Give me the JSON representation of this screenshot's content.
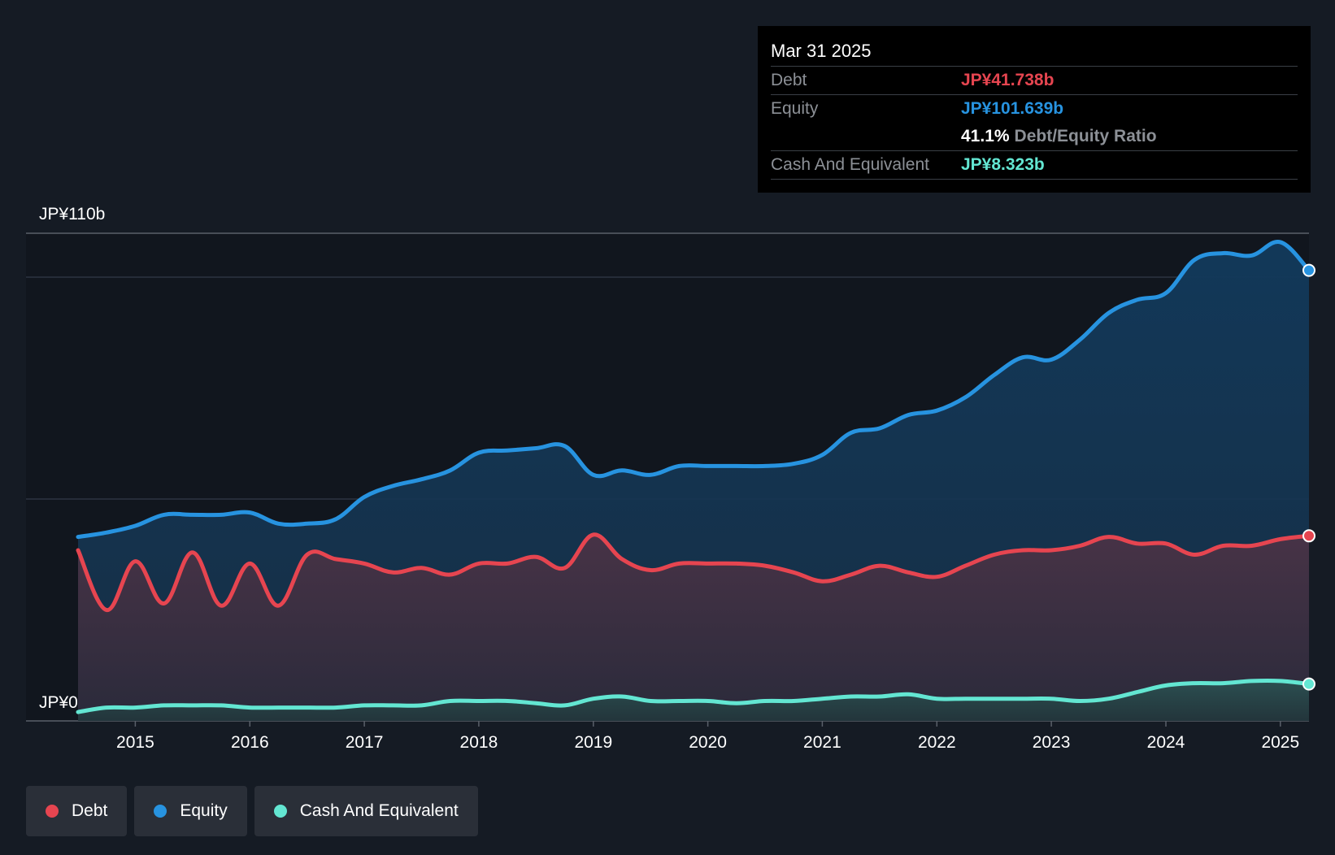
{
  "colors": {
    "debt": "#e64550",
    "equity": "#2793e0",
    "cash": "#63e6d2",
    "background": "#151b24"
  },
  "tooltip": {
    "date": "Mar 31 2025",
    "debt_label": "Debt",
    "debt_value": "JP¥41.738b",
    "equity_label": "Equity",
    "equity_value": "JP¥101.639b",
    "ratio_value": "41.1%",
    "ratio_label": "Debt/Equity Ratio",
    "cash_label": "Cash And Equivalent",
    "cash_value": "JP¥8.323b"
  },
  "legend": [
    {
      "label": "Debt",
      "color": "#e64550"
    },
    {
      "label": "Equity",
      "color": "#2793e0"
    },
    {
      "label": "Cash And Equivalent",
      "color": "#63e6d2"
    }
  ],
  "chart_data": {
    "type": "area",
    "title": "",
    "xlabel": "",
    "ylabel": "",
    "ylim": [
      0,
      110
    ],
    "y_tick_labels": [
      "JP¥0",
      "JP¥110b"
    ],
    "x_tick_labels": [
      "2015",
      "2016",
      "2017",
      "2018",
      "2019",
      "2020",
      "2021",
      "2022",
      "2023",
      "2024",
      "2025"
    ],
    "x_ticks": [
      2015,
      2016,
      2017,
      2018,
      2019,
      2020,
      2021,
      2022,
      2023,
      2024,
      2025
    ],
    "xlim": [
      2014.5,
      2025.25
    ],
    "series": [
      {
        "name": "Equity",
        "color": "#2793e0",
        "points": [
          [
            2014.5,
            41.5
          ],
          [
            2014.75,
            42.5
          ],
          [
            2015.0,
            44.0
          ],
          [
            2015.25,
            46.5
          ],
          [
            2015.5,
            46.5
          ],
          [
            2015.75,
            46.5
          ],
          [
            2016.0,
            47.0
          ],
          [
            2016.25,
            44.5
          ],
          [
            2016.5,
            44.5
          ],
          [
            2016.75,
            45.5
          ],
          [
            2017.0,
            50.5
          ],
          [
            2017.25,
            53.0
          ],
          [
            2017.5,
            54.5
          ],
          [
            2017.75,
            56.5
          ],
          [
            2018.0,
            60.5
          ],
          [
            2018.25,
            61.0
          ],
          [
            2018.5,
            61.5
          ],
          [
            2018.75,
            62.0
          ],
          [
            2019.0,
            55.5
          ],
          [
            2019.25,
            56.5
          ],
          [
            2019.5,
            55.5
          ],
          [
            2019.75,
            57.5
          ],
          [
            2020.0,
            57.5
          ],
          [
            2020.25,
            57.5
          ],
          [
            2020.5,
            57.5
          ],
          [
            2020.75,
            58.0
          ],
          [
            2021.0,
            60.0
          ],
          [
            2021.25,
            65.0
          ],
          [
            2021.5,
            66.0
          ],
          [
            2021.75,
            69.0
          ],
          [
            2022.0,
            70.0
          ],
          [
            2022.25,
            73.0
          ],
          [
            2022.5,
            78.0
          ],
          [
            2022.75,
            82.0
          ],
          [
            2023.0,
            81.5
          ],
          [
            2023.25,
            86.0
          ],
          [
            2023.5,
            92.0
          ],
          [
            2023.75,
            95.0
          ],
          [
            2024.0,
            96.5
          ],
          [
            2024.25,
            104.0
          ],
          [
            2024.5,
            105.5
          ],
          [
            2024.75,
            105.0
          ],
          [
            2025.0,
            108.0
          ],
          [
            2025.25,
            101.639
          ]
        ]
      },
      {
        "name": "Debt",
        "color": "#e64550",
        "points": [
          [
            2014.5,
            38.5
          ],
          [
            2014.75,
            25.0
          ],
          [
            2015.0,
            36.0
          ],
          [
            2015.25,
            26.5
          ],
          [
            2015.5,
            38.0
          ],
          [
            2015.75,
            26.0
          ],
          [
            2016.0,
            35.5
          ],
          [
            2016.25,
            26.0
          ],
          [
            2016.5,
            37.5
          ],
          [
            2016.75,
            36.5
          ],
          [
            2017.0,
            35.5
          ],
          [
            2017.25,
            33.5
          ],
          [
            2017.5,
            34.5
          ],
          [
            2017.75,
            33.0
          ],
          [
            2018.0,
            35.5
          ],
          [
            2018.25,
            35.5
          ],
          [
            2018.5,
            37.0
          ],
          [
            2018.75,
            34.5
          ],
          [
            2019.0,
            42.0
          ],
          [
            2019.25,
            36.5
          ],
          [
            2019.5,
            34.0
          ],
          [
            2019.75,
            35.5
          ],
          [
            2020.0,
            35.5
          ],
          [
            2020.25,
            35.5
          ],
          [
            2020.5,
            35.0
          ],
          [
            2020.75,
            33.5
          ],
          [
            2021.0,
            31.5
          ],
          [
            2021.25,
            33.0
          ],
          [
            2021.5,
            35.0
          ],
          [
            2021.75,
            33.5
          ],
          [
            2022.0,
            32.5
          ],
          [
            2022.25,
            35.0
          ],
          [
            2022.5,
            37.5
          ],
          [
            2022.75,
            38.5
          ],
          [
            2023.0,
            38.5
          ],
          [
            2023.25,
            39.5
          ],
          [
            2023.5,
            41.5
          ],
          [
            2023.75,
            40.0
          ],
          [
            2024.0,
            40.0
          ],
          [
            2024.25,
            37.5
          ],
          [
            2024.5,
            39.5
          ],
          [
            2024.75,
            39.5
          ],
          [
            2025.0,
            41.0
          ],
          [
            2025.25,
            41.738
          ]
        ]
      },
      {
        "name": "Cash And Equivalent",
        "color": "#63e6d2",
        "points": [
          [
            2014.5,
            2.0
          ],
          [
            2014.75,
            3.0
          ],
          [
            2015.0,
            3.0
          ],
          [
            2015.25,
            3.5
          ],
          [
            2015.5,
            3.5
          ],
          [
            2015.75,
            3.5
          ],
          [
            2016.0,
            3.0
          ],
          [
            2016.25,
            3.0
          ],
          [
            2016.5,
            3.0
          ],
          [
            2016.75,
            3.0
          ],
          [
            2017.0,
            3.5
          ],
          [
            2017.25,
            3.5
          ],
          [
            2017.5,
            3.5
          ],
          [
            2017.75,
            4.5
          ],
          [
            2018.0,
            4.5
          ],
          [
            2018.25,
            4.5
          ],
          [
            2018.5,
            4.0
          ],
          [
            2018.75,
            3.5
          ],
          [
            2019.0,
            5.0
          ],
          [
            2019.25,
            5.5
          ],
          [
            2019.5,
            4.5
          ],
          [
            2019.75,
            4.5
          ],
          [
            2020.0,
            4.5
          ],
          [
            2020.25,
            4.0
          ],
          [
            2020.5,
            4.5
          ],
          [
            2020.75,
            4.5
          ],
          [
            2021.0,
            5.0
          ],
          [
            2021.25,
            5.5
          ],
          [
            2021.5,
            5.5
          ],
          [
            2021.75,
            6.0
          ],
          [
            2022.0,
            5.0
          ],
          [
            2022.25,
            5.0
          ],
          [
            2022.5,
            5.0
          ],
          [
            2022.75,
            5.0
          ],
          [
            2023.0,
            5.0
          ],
          [
            2023.25,
            4.5
          ],
          [
            2023.5,
            5.0
          ],
          [
            2023.75,
            6.5
          ],
          [
            2024.0,
            8.0
          ],
          [
            2024.25,
            8.5
          ],
          [
            2024.5,
            8.5
          ],
          [
            2024.75,
            9.0
          ],
          [
            2025.0,
            9.0
          ],
          [
            2025.25,
            8.323
          ]
        ]
      }
    ],
    "grid": true,
    "legend_position": "bottom-left"
  }
}
